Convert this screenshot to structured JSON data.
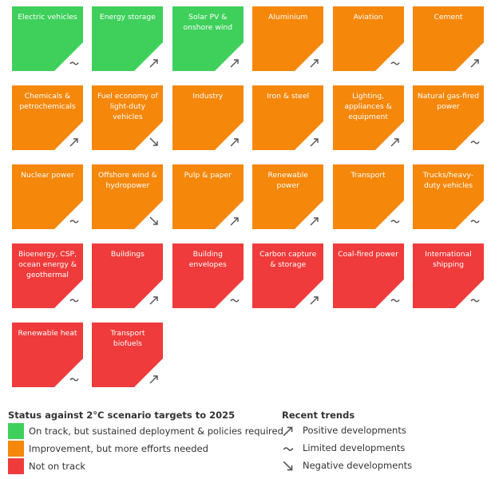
{
  "colors": {
    "on_track": "#3fd05c",
    "improvement": "#f5870a",
    "not_on_track": "#ef3b3b",
    "icon": "#555555"
  },
  "tiles": [
    {
      "label": "Electric vehicles",
      "status": "green",
      "trend": "limited"
    },
    {
      "label": "Energy storage",
      "status": "green",
      "trend": "positive"
    },
    {
      "label": "Solar PV & onshore wind",
      "status": "green",
      "trend": "positive"
    },
    {
      "label": "Aluminium",
      "status": "orange",
      "trend": "positive"
    },
    {
      "label": "Aviation",
      "status": "orange",
      "trend": "limited"
    },
    {
      "label": "Cement",
      "status": "orange",
      "trend": "positive"
    },
    {
      "label": "Chemicals & petrochemicals",
      "status": "orange",
      "trend": "positive"
    },
    {
      "label": "Fuel economy of light-duty vehicles",
      "status": "orange",
      "trend": "negative"
    },
    {
      "label": "Industry",
      "status": "orange",
      "trend": "positive"
    },
    {
      "label": "Iron & steel",
      "status": "orange",
      "trend": "positive"
    },
    {
      "label": "Lighting, appliances & equipment",
      "status": "orange",
      "trend": "positive"
    },
    {
      "label": "Natural gas-fired power",
      "status": "orange",
      "trend": "limited"
    },
    {
      "label": "Nuclear power",
      "status": "orange",
      "trend": "limited"
    },
    {
      "label": "Offshore wind & hydropower",
      "status": "orange",
      "trend": "negative"
    },
    {
      "label": "Pulp & paper",
      "status": "orange",
      "trend": "positive"
    },
    {
      "label": "Renewable power",
      "status": "orange",
      "trend": "positive"
    },
    {
      "label": "Transport",
      "status": "orange",
      "trend": "limited"
    },
    {
      "label": "Trucks/heavy-duty vehicles",
      "status": "orange",
      "trend": "limited"
    },
    {
      "label": "Bioenergy, CSP, ocean energy & geothermal",
      "status": "red",
      "trend": "limited"
    },
    {
      "label": "Buildings",
      "status": "red",
      "trend": "positive"
    },
    {
      "label": "Building envelopes",
      "status": "red",
      "trend": "limited"
    },
    {
      "label": "Carbon capture & storage",
      "status": "red",
      "trend": "positive"
    },
    {
      "label": "Coal-fired power",
      "status": "red",
      "trend": "limited"
    },
    {
      "label": "International shipping",
      "status": "red",
      "trend": "limited"
    },
    {
      "label": "Renewable heat",
      "status": "red",
      "trend": "limited"
    },
    {
      "label": "Transport biofuels",
      "status": "red",
      "trend": "positive"
    }
  ],
  "legend": {
    "status_heading": "Status against 2°C scenario targets to 2025",
    "status_items": [
      {
        "label": "On track, but sustained deployment & policies required",
        "status": "green"
      },
      {
        "label": "Improvement, but more efforts needed",
        "status": "orange"
      },
      {
        "label": "Not on track",
        "status": "red"
      }
    ],
    "trend_heading": "Recent trends",
    "trend_items": [
      {
        "label": "Positive developments",
        "icon": "positive-trend-icon",
        "trend": "positive"
      },
      {
        "label": "Limited developments",
        "icon": "limited-trend-icon",
        "trend": "limited"
      },
      {
        "label": "Negative developments",
        "icon": "negative-trend-icon",
        "trend": "negative"
      }
    ]
  }
}
